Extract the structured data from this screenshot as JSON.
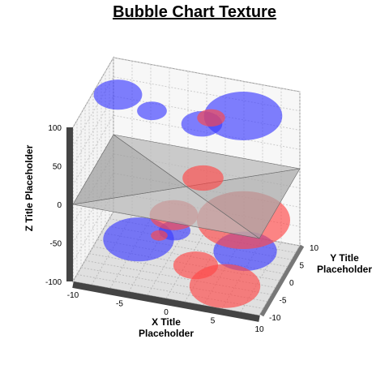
{
  "chart_data": {
    "type": "bubble-3d-surface",
    "title": "Bubble Chart Texture",
    "xlabel": "X Title Placeholder",
    "ylabel": "Y Title Placeholder",
    "zlabel": "Z Title Placeholder",
    "xlim": [
      -10,
      10
    ],
    "ylim": [
      -10,
      10
    ],
    "zlim": [
      -100,
      100
    ],
    "x_ticks": [
      "-10",
      "-5",
      "0",
      "5",
      "10"
    ],
    "y_ticks": [
      "-10",
      "-5",
      "0",
      "5",
      "10"
    ],
    "z_ticks": [
      "100",
      "50",
      "0",
      "-50",
      "-100"
    ],
    "grid": true,
    "surface": "saddle z = (x² − y²)",
    "colors": {
      "series_a": "#3a3aff",
      "series_b": "#ff3a3a",
      "surface": "#9a9a9a"
    },
    "series": [
      {
        "name": "",
        "color": "blue",
        "bubbles": [
          {
            "x": -8,
            "y": 3,
            "z": 88,
            "r": 2.6
          },
          {
            "x": -5,
            "y": 6,
            "z": 60,
            "r": 1.6
          },
          {
            "x": 5,
            "y": 5,
            "z": 80,
            "r": 4.2
          },
          {
            "x": 1,
            "y": 3,
            "z": 70,
            "r": 2.2
          },
          {
            "x": -6,
            "y": 4,
            "z": -100,
            "r": 3.8
          },
          {
            "x": 5,
            "y": 6,
            "z": -100,
            "r": 3.4
          },
          {
            "x": -3,
            "y": 8,
            "z": -100,
            "r": 1.7
          }
        ]
      },
      {
        "name": "",
        "color": "red",
        "bubbles": [
          {
            "x": 2,
            "y": 3,
            "z": 80,
            "r": 1.5
          },
          {
            "x": 2,
            "y": -1,
            "z": 20,
            "r": 2.2
          },
          {
            "x": 7,
            "y": -4,
            "z": -10,
            "r": 5
          },
          {
            "x": -2,
            "y": 3,
            "z": -55,
            "r": 2.6
          },
          {
            "x": 5,
            "y": -4,
            "z": -100,
            "r": 3.8
          },
          {
            "x": 1,
            "y": 0,
            "z": -100,
            "r": 2.4
          },
          {
            "x": -4,
            "y": 5,
            "z": -95,
            "r": 0.9
          }
        ]
      }
    ]
  }
}
